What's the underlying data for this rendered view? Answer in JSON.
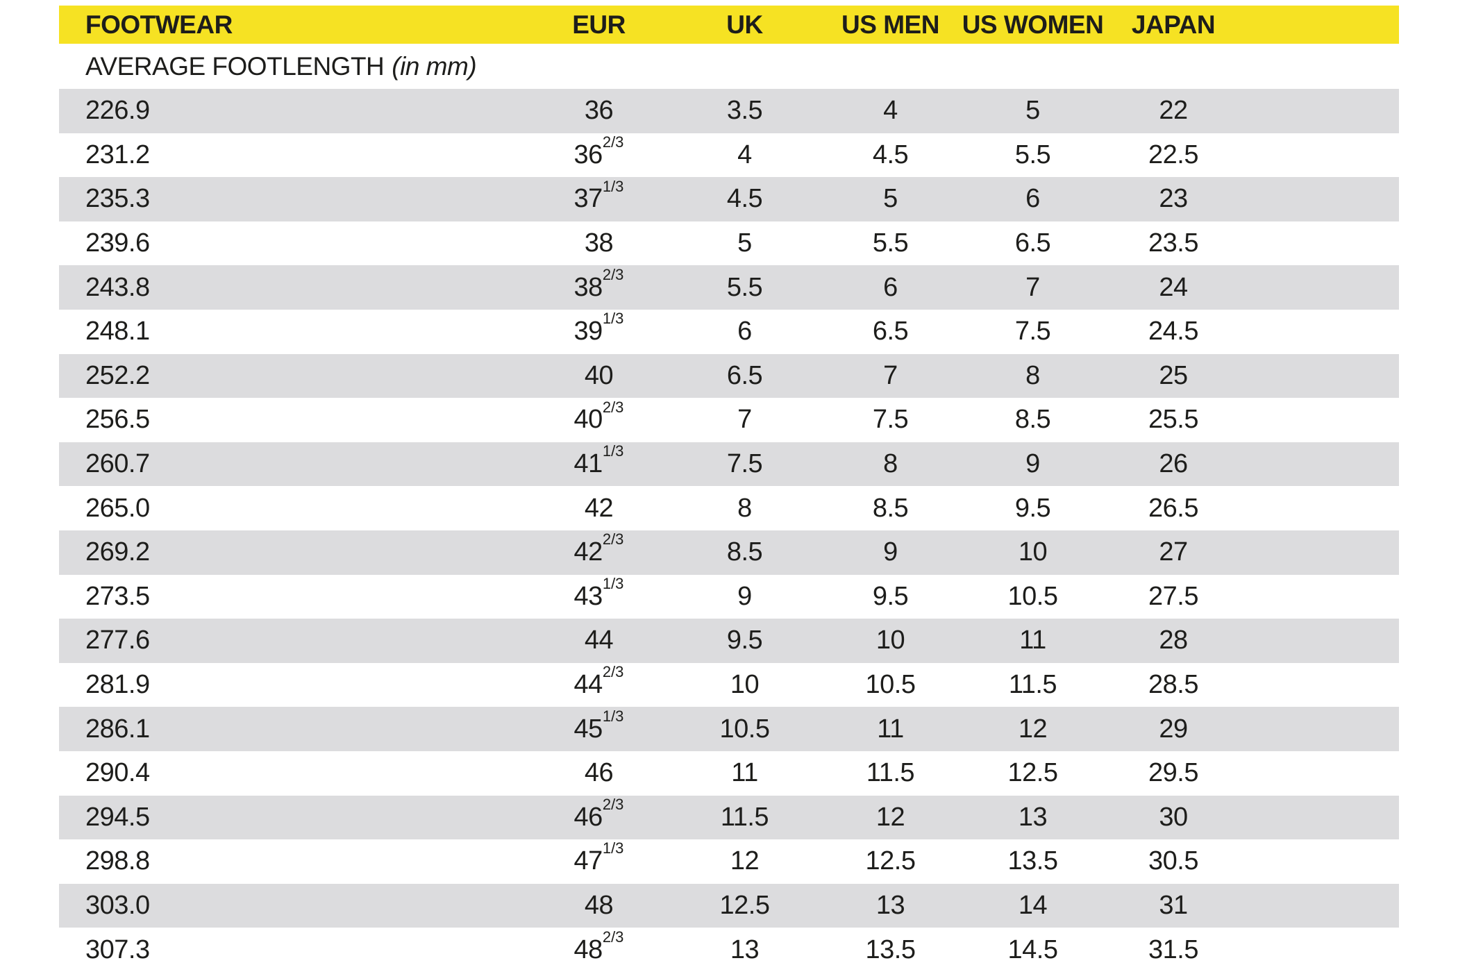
{
  "table": {
    "header": {
      "footwear": "FOOTWEAR",
      "eur": "EUR",
      "uk": "UK",
      "us_men": "US MEN",
      "us_women": "US WOMEN",
      "japan": "JAPAN"
    },
    "subheader_label": "AVERAGE FOOTLENGTH",
    "subheader_unit": "(in mm)",
    "rows": [
      {
        "footlength_mm": "226.9",
        "eur_whole": "36",
        "eur_frac": "",
        "uk": "3.5",
        "us_men": "4",
        "us_women": "5",
        "japan": "22"
      },
      {
        "footlength_mm": "231.2",
        "eur_whole": "36",
        "eur_frac": "2/3",
        "uk": "4",
        "us_men": "4.5",
        "us_women": "5.5",
        "japan": "22.5"
      },
      {
        "footlength_mm": "235.3",
        "eur_whole": "37",
        "eur_frac": "1/3",
        "uk": "4.5",
        "us_men": "5",
        "us_women": "6",
        "japan": "23"
      },
      {
        "footlength_mm": "239.6",
        "eur_whole": "38",
        "eur_frac": "",
        "uk": "5",
        "us_men": "5.5",
        "us_women": "6.5",
        "japan": "23.5"
      },
      {
        "footlength_mm": "243.8",
        "eur_whole": "38",
        "eur_frac": "2/3",
        "uk": "5.5",
        "us_men": "6",
        "us_women": "7",
        "japan": "24"
      },
      {
        "footlength_mm": "248.1",
        "eur_whole": "39",
        "eur_frac": "1/3",
        "uk": "6",
        "us_men": "6.5",
        "us_women": "7.5",
        "japan": "24.5"
      },
      {
        "footlength_mm": "252.2",
        "eur_whole": "40",
        "eur_frac": "",
        "uk": "6.5",
        "us_men": "7",
        "us_women": "8",
        "japan": "25"
      },
      {
        "footlength_mm": "256.5",
        "eur_whole": "40",
        "eur_frac": "2/3",
        "uk": "7",
        "us_men": "7.5",
        "us_women": "8.5",
        "japan": "25.5"
      },
      {
        "footlength_mm": "260.7",
        "eur_whole": "41",
        "eur_frac": "1/3",
        "uk": "7.5",
        "us_men": "8",
        "us_women": "9",
        "japan": "26"
      },
      {
        "footlength_mm": "265.0",
        "eur_whole": "42",
        "eur_frac": "",
        "uk": "8",
        "us_men": "8.5",
        "us_women": "9.5",
        "japan": "26.5"
      },
      {
        "footlength_mm": "269.2",
        "eur_whole": "42",
        "eur_frac": "2/3",
        "uk": "8.5",
        "us_men": "9",
        "us_women": "10",
        "japan": "27"
      },
      {
        "footlength_mm": "273.5",
        "eur_whole": "43",
        "eur_frac": "1/3",
        "uk": "9",
        "us_men": "9.5",
        "us_women": "10.5",
        "japan": "27.5"
      },
      {
        "footlength_mm": "277.6",
        "eur_whole": "44",
        "eur_frac": "",
        "uk": "9.5",
        "us_men": "10",
        "us_women": "11",
        "japan": "28"
      },
      {
        "footlength_mm": "281.9",
        "eur_whole": "44",
        "eur_frac": "2/3",
        "uk": "10",
        "us_men": "10.5",
        "us_women": "11.5",
        "japan": "28.5"
      },
      {
        "footlength_mm": "286.1",
        "eur_whole": "45",
        "eur_frac": "1/3",
        "uk": "10.5",
        "us_men": "11",
        "us_women": "12",
        "japan": "29"
      },
      {
        "footlength_mm": "290.4",
        "eur_whole": "46",
        "eur_frac": "",
        "uk": "11",
        "us_men": "11.5",
        "us_women": "12.5",
        "japan": "29.5"
      },
      {
        "footlength_mm": "294.5",
        "eur_whole": "46",
        "eur_frac": "2/3",
        "uk": "11.5",
        "us_men": "12",
        "us_women": "13",
        "japan": "30"
      },
      {
        "footlength_mm": "298.8",
        "eur_whole": "47",
        "eur_frac": "1/3",
        "uk": "12",
        "us_men": "12.5",
        "us_women": "13.5",
        "japan": "30.5"
      },
      {
        "footlength_mm": "303.0",
        "eur_whole": "48",
        "eur_frac": "",
        "uk": "12.5",
        "us_men": "13",
        "us_women": "14",
        "japan": "31"
      },
      {
        "footlength_mm": "307.3",
        "eur_whole": "48",
        "eur_frac": "2/3",
        "uk": "13",
        "us_men": "13.5",
        "us_women": "14.5",
        "japan": "31.5"
      }
    ]
  },
  "colors": {
    "header_bg": "#f6e223",
    "row_alt_bg": "#dcdcde",
    "text": "#1d1d1b"
  }
}
